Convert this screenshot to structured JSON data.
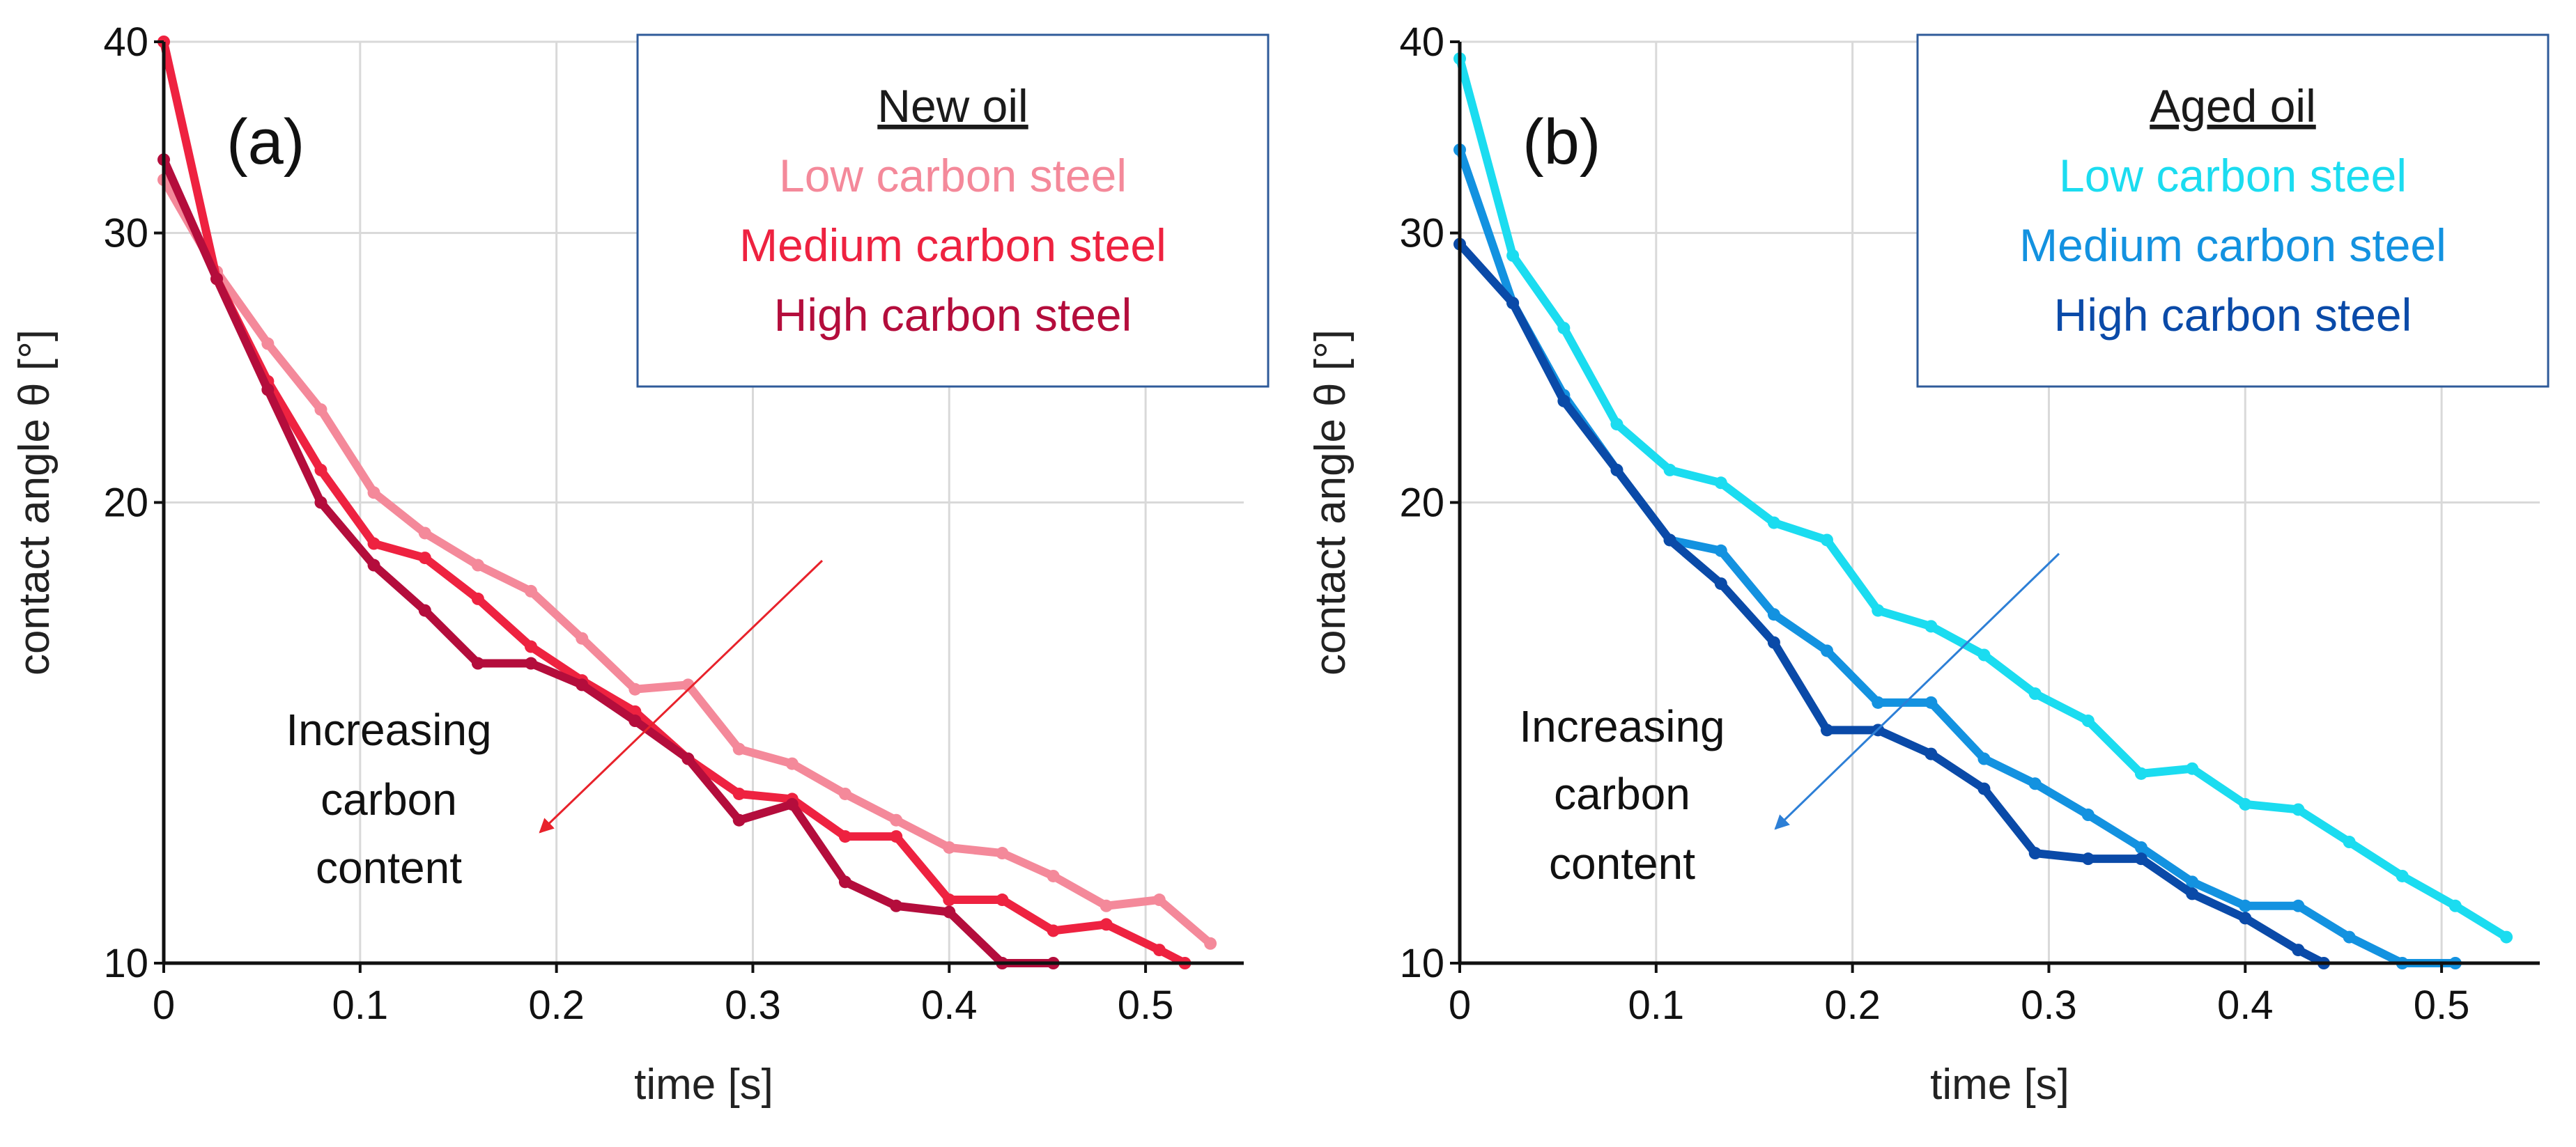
{
  "chart_data": [
    {
      "type": "line",
      "panel_label": "(a)",
      "xlabel": "time [s]",
      "ylabel": "contact angle θ [°]",
      "xlim": [
        0,
        0.55
      ],
      "ylim": [
        10,
        40
      ],
      "yscale": "log",
      "xticks": [
        "0",
        "0.1",
        "0.2",
        "0.3",
        "0.4",
        "0.5"
      ],
      "yticks": [
        "10",
        "20",
        "30",
        "40"
      ],
      "grid": true,
      "legend": {
        "title": "New oil",
        "position": "top-right",
        "entries": [
          "Low carbon steel",
          "Medium carbon steel",
          "High carbon steel"
        ]
      },
      "annotation": {
        "lines": [
          "Increasing",
          "carbon",
          "content"
        ],
        "arrow_color": "#e8222b"
      },
      "series": [
        {
          "name": "Low carbon steel",
          "color": "#f4899a",
          "x": [
            0,
            0.027,
            0.053,
            0.08,
            0.107,
            0.133,
            0.16,
            0.187,
            0.213,
            0.24,
            0.267,
            0.293,
            0.32,
            0.347,
            0.373,
            0.4,
            0.427,
            0.453,
            0.48,
            0.507,
            0.533
          ],
          "y": [
            32.5,
            28.3,
            25.4,
            23.0,
            20.3,
            19.1,
            18.2,
            17.5,
            16.3,
            15.1,
            15.2,
            13.8,
            13.5,
            12.9,
            12.4,
            11.9,
            11.8,
            11.4,
            10.9,
            11.0,
            10.3
          ]
        },
        {
          "name": "Medium carbon steel",
          "color": "#ee2240",
          "x": [
            0,
            0.027,
            0.053,
            0.08,
            0.107,
            0.133,
            0.16,
            0.187,
            0.213,
            0.24,
            0.267,
            0.293,
            0.32,
            0.347,
            0.373,
            0.4,
            0.427,
            0.453,
            0.48,
            0.507,
            0.52
          ],
          "y": [
            40.0,
            28.0,
            24.0,
            21.0,
            18.8,
            18.4,
            17.3,
            16.1,
            15.3,
            14.6,
            13.6,
            12.9,
            12.8,
            12.1,
            12.1,
            11.0,
            11.0,
            10.5,
            10.6,
            10.2,
            9.9
          ]
        },
        {
          "name": "High carbon steel",
          "color": "#b40d3c",
          "x": [
            0,
            0.027,
            0.053,
            0.08,
            0.107,
            0.133,
            0.16,
            0.187,
            0.213,
            0.24,
            0.267,
            0.293,
            0.32,
            0.347,
            0.373,
            0.4,
            0.427,
            0.453
          ],
          "y": [
            33.5,
            28.0,
            23.7,
            20.0,
            18.2,
            17.0,
            15.7,
            15.7,
            15.2,
            14.4,
            13.6,
            12.4,
            12.7,
            11.3,
            10.9,
            10.8,
            10.0,
            10.0
          ]
        }
      ]
    },
    {
      "type": "line",
      "panel_label": "(b)",
      "xlabel": "time [s]",
      "ylabel": "contact angle θ [°]",
      "xlim": [
        0,
        0.55
      ],
      "ylim": [
        10,
        40
      ],
      "yscale": "log",
      "xticks": [
        "0",
        "0.1",
        "0.2",
        "0.3",
        "0.4",
        "0.5"
      ],
      "yticks": [
        "10",
        "20",
        "30",
        "40"
      ],
      "grid": true,
      "legend": {
        "title": "Aged oil",
        "position": "top-right",
        "entries": [
          "Low carbon steel",
          "Medium carbon steel",
          "High carbon steel"
        ]
      },
      "annotation": {
        "lines": [
          "Increasing",
          "carbon",
          "content"
        ],
        "arrow_color": "#2d7fd6"
      },
      "series": [
        {
          "name": "Low carbon steel",
          "color": "#1bdcf0",
          "x": [
            0,
            0.027,
            0.053,
            0.08,
            0.107,
            0.133,
            0.16,
            0.187,
            0.213,
            0.24,
            0.267,
            0.293,
            0.32,
            0.347,
            0.373,
            0.4,
            0.427,
            0.453,
            0.48,
            0.507,
            0.533
          ],
          "y": [
            39.0,
            29.0,
            26.0,
            22.5,
            21.0,
            20.6,
            19.4,
            18.9,
            17.0,
            16.6,
            15.9,
            15.0,
            14.4,
            13.3,
            13.4,
            12.7,
            12.6,
            12.0,
            11.4,
            10.9,
            10.4
          ]
        },
        {
          "name": "Medium carbon steel",
          "color": "#1392e0",
          "x": [
            0,
            0.027,
            0.053,
            0.08,
            0.107,
            0.133,
            0.16,
            0.187,
            0.213,
            0.24,
            0.267,
            0.293,
            0.32,
            0.347,
            0.373,
            0.4,
            0.427,
            0.453,
            0.48,
            0.507
          ],
          "y": [
            34.0,
            27.0,
            23.5,
            21.0,
            18.9,
            18.6,
            16.9,
            16.0,
            14.8,
            14.8,
            13.6,
            13.1,
            12.5,
            11.9,
            11.3,
            10.9,
            10.9,
            10.4,
            10.0,
            10.0
          ]
        },
        {
          "name": "High carbon steel",
          "color": "#0a4aa8",
          "x": [
            0,
            0.027,
            0.053,
            0.08,
            0.107,
            0.133,
            0.16,
            0.187,
            0.213,
            0.24,
            0.267,
            0.293,
            0.32,
            0.347,
            0.373,
            0.4,
            0.427,
            0.44
          ],
          "y": [
            29.5,
            27.0,
            23.3,
            21.0,
            18.9,
            17.7,
            16.2,
            14.2,
            14.2,
            13.7,
            13.0,
            11.8,
            11.7,
            11.7,
            11.1,
            10.7,
            10.2,
            9.9
          ]
        }
      ]
    }
  ]
}
